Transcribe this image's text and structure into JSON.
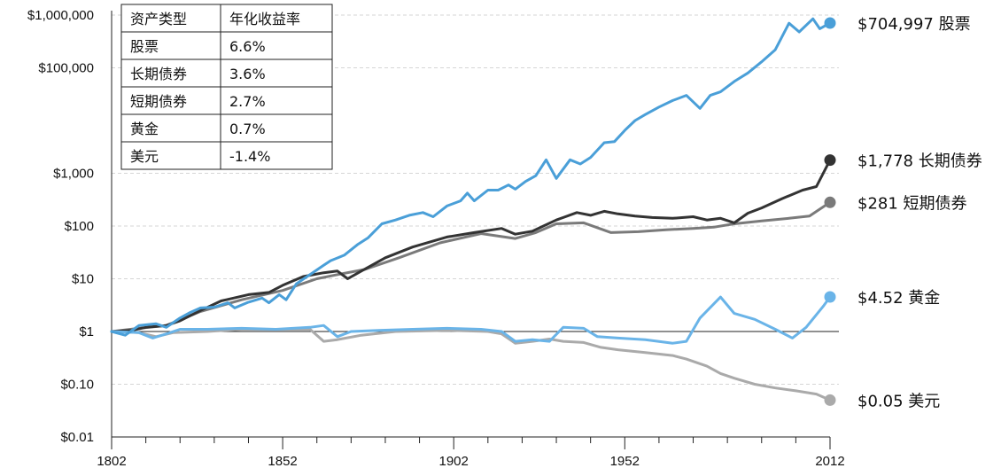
{
  "chart_data": {
    "type": "line",
    "scale": "log",
    "ylim": [
      0.01,
      1000000
    ],
    "xlim": [
      1802,
      2012
    ],
    "y_ticks": [
      {
        "value": 1000000,
        "label": "$1,000,000"
      },
      {
        "value": 100000,
        "label": "$100,000"
      },
      {
        "value": 1000,
        "label": "$1,000"
      },
      {
        "value": 100,
        "label": "$100"
      },
      {
        "value": 10,
        "label": "$10"
      },
      {
        "value": 1,
        "label": "$1"
      },
      {
        "value": 0.1,
        "label": "$0.10"
      },
      {
        "value": 0.01,
        "label": "$0.01"
      }
    ],
    "x_tick_labels": [
      "1802",
      "1852",
      "1902",
      "1952",
      "2012"
    ],
    "x_tick_values": [
      1802,
      1852,
      1902,
      1952,
      2012
    ],
    "grid": true,
    "table": {
      "headers": [
        "资产类型",
        "年化收益率"
      ],
      "rows": [
        [
          "股票",
          "6.6%"
        ],
        [
          "长期债券",
          "3.6%"
        ],
        [
          "短期债券",
          "2.7%"
        ],
        [
          "黄金",
          "0.7%"
        ],
        [
          "美元",
          "-1.4%"
        ]
      ]
    },
    "series": [
      {
        "end_label": "$704,997 股票",
        "color": "#4a9fd8",
        "end_value": 704997,
        "points": [
          [
            1802,
            1
          ],
          [
            1806,
            0.85
          ],
          [
            1810,
            1.3
          ],
          [
            1815,
            1.4
          ],
          [
            1818,
            1.2
          ],
          [
            1822,
            1.8
          ],
          [
            1825,
            2.3
          ],
          [
            1828,
            2.8
          ],
          [
            1832,
            2.9
          ],
          [
            1836,
            3.5
          ],
          [
            1838,
            2.8
          ],
          [
            1842,
            3.6
          ],
          [
            1846,
            4.3
          ],
          [
            1848,
            3.5
          ],
          [
            1851,
            5
          ],
          [
            1853,
            4
          ],
          [
            1856,
            8
          ],
          [
            1860,
            12
          ],
          [
            1864,
            18
          ],
          [
            1866,
            22
          ],
          [
            1870,
            28
          ],
          [
            1874,
            45
          ],
          [
            1877,
            60
          ],
          [
            1881,
            110
          ],
          [
            1885,
            130
          ],
          [
            1889,
            160
          ],
          [
            1893,
            180
          ],
          [
            1896,
            150
          ],
          [
            1900,
            240
          ],
          [
            1904,
            300
          ],
          [
            1906,
            420
          ],
          [
            1908,
            300
          ],
          [
            1912,
            480
          ],
          [
            1915,
            480
          ],
          [
            1918,
            600
          ],
          [
            1920,
            500
          ],
          [
            1923,
            700
          ],
          [
            1926,
            900
          ],
          [
            1929,
            1800
          ],
          [
            1932,
            800
          ],
          [
            1936,
            1800
          ],
          [
            1939,
            1500
          ],
          [
            1942,
            2000
          ],
          [
            1946,
            3800
          ],
          [
            1949,
            4000
          ],
          [
            1952,
            6500
          ],
          [
            1955,
            10000
          ],
          [
            1958,
            13000
          ],
          [
            1962,
            18000
          ],
          [
            1966,
            24000
          ],
          [
            1970,
            30000
          ],
          [
            1974,
            17000
          ],
          [
            1977,
            30000
          ],
          [
            1980,
            35000
          ],
          [
            1984,
            55000
          ],
          [
            1988,
            80000
          ],
          [
            1992,
            130000
          ],
          [
            1996,
            220000
          ],
          [
            2000,
            700000
          ],
          [
            2003,
            480000
          ],
          [
            2007,
            850000
          ],
          [
            2009,
            550000
          ],
          [
            2012,
            704997
          ]
        ]
      },
      {
        "end_label": "$1,778 长期债券",
        "color": "#333333",
        "end_value": 1778,
        "points": [
          [
            1802,
            1
          ],
          [
            1808,
            1.05
          ],
          [
            1812,
            1.2
          ],
          [
            1818,
            1.3
          ],
          [
            1822,
            1.6
          ],
          [
            1828,
            2.5
          ],
          [
            1834,
            3.8
          ],
          [
            1842,
            5
          ],
          [
            1848,
            5.5
          ],
          [
            1852,
            7.5
          ],
          [
            1858,
            11
          ],
          [
            1864,
            13
          ],
          [
            1868,
            14
          ],
          [
            1871,
            10
          ],
          [
            1875,
            14
          ],
          [
            1882,
            25
          ],
          [
            1890,
            40
          ],
          [
            1900,
            62
          ],
          [
            1908,
            75
          ],
          [
            1916,
            90
          ],
          [
            1920,
            70
          ],
          [
            1925,
            80
          ],
          [
            1932,
            130
          ],
          [
            1938,
            180
          ],
          [
            1942,
            160
          ],
          [
            1946,
            190
          ],
          [
            1950,
            170
          ],
          [
            1955,
            155
          ],
          [
            1960,
            145
          ],
          [
            1966,
            140
          ],
          [
            1972,
            150
          ],
          [
            1976,
            130
          ],
          [
            1980,
            140
          ],
          [
            1984,
            115
          ],
          [
            1988,
            175
          ],
          [
            1992,
            220
          ],
          [
            1998,
            330
          ],
          [
            2004,
            480
          ],
          [
            2008,
            560
          ],
          [
            2012,
            1778
          ]
        ]
      },
      {
        "end_label": "$281 短期债券",
        "color": "#7a7a7a",
        "end_value": 281,
        "points": [
          [
            1802,
            1
          ],
          [
            1810,
            1.15
          ],
          [
            1818,
            1.3
          ],
          [
            1828,
            2.4
          ],
          [
            1840,
            4
          ],
          [
            1852,
            6
          ],
          [
            1862,
            10
          ],
          [
            1868,
            12
          ],
          [
            1876,
            15
          ],
          [
            1886,
            25
          ],
          [
            1898,
            48
          ],
          [
            1910,
            72
          ],
          [
            1920,
            58
          ],
          [
            1926,
            75
          ],
          [
            1932,
            110
          ],
          [
            1940,
            115
          ],
          [
            1948,
            75
          ],
          [
            1956,
            78
          ],
          [
            1964,
            85
          ],
          [
            1972,
            90
          ],
          [
            1978,
            95
          ],
          [
            1984,
            110
          ],
          [
            1992,
            125
          ],
          [
            2000,
            140
          ],
          [
            2006,
            155
          ],
          [
            2012,
            281
          ]
        ]
      },
      {
        "end_label": "$4.52 黄金",
        "color": "#6ab4e8",
        "end_value": 4.52,
        "points": [
          [
            1802,
            1
          ],
          [
            1810,
            0.95
          ],
          [
            1814,
            0.75
          ],
          [
            1818,
            0.9
          ],
          [
            1822,
            1.1
          ],
          [
            1830,
            1.1
          ],
          [
            1840,
            1.15
          ],
          [
            1850,
            1.1
          ],
          [
            1860,
            1.2
          ],
          [
            1864,
            1.3
          ],
          [
            1868,
            0.8
          ],
          [
            1872,
            1.0
          ],
          [
            1880,
            1.05
          ],
          [
            1890,
            1.1
          ],
          [
            1900,
            1.15
          ],
          [
            1910,
            1.1
          ],
          [
            1916,
            1.0
          ],
          [
            1920,
            0.65
          ],
          [
            1925,
            0.7
          ],
          [
            1930,
            0.65
          ],
          [
            1934,
            1.2
          ],
          [
            1940,
            1.15
          ],
          [
            1944,
            0.8
          ],
          [
            1950,
            0.75
          ],
          [
            1958,
            0.7
          ],
          [
            1966,
            0.6
          ],
          [
            1970,
            0.65
          ],
          [
            1974,
            1.8
          ],
          [
            1980,
            4.5
          ],
          [
            1984,
            2.2
          ],
          [
            1990,
            1.7
          ],
          [
            1996,
            1.1
          ],
          [
            2001,
            0.75
          ],
          [
            2005,
            1.2
          ],
          [
            2010,
            3.0
          ],
          [
            2012,
            4.52
          ]
        ]
      },
      {
        "end_label": "$0.05 美元",
        "color": "#aaaaaa",
        "end_value": 0.05,
        "points": [
          [
            1802,
            1
          ],
          [
            1810,
            0.95
          ],
          [
            1815,
            0.8
          ],
          [
            1820,
            0.95
          ],
          [
            1830,
            1.0
          ],
          [
            1840,
            1.1
          ],
          [
            1850,
            1.1
          ],
          [
            1860,
            1.1
          ],
          [
            1864,
            0.65
          ],
          [
            1868,
            0.7
          ],
          [
            1875,
            0.85
          ],
          [
            1885,
            1.0
          ],
          [
            1900,
            1.05
          ],
          [
            1912,
            1.0
          ],
          [
            1916,
            0.9
          ],
          [
            1920,
            0.6
          ],
          [
            1925,
            0.65
          ],
          [
            1930,
            0.72
          ],
          [
            1934,
            0.65
          ],
          [
            1940,
            0.62
          ],
          [
            1945,
            0.5
          ],
          [
            1950,
            0.45
          ],
          [
            1958,
            0.4
          ],
          [
            1966,
            0.35
          ],
          [
            1970,
            0.3
          ],
          [
            1976,
            0.22
          ],
          [
            1980,
            0.16
          ],
          [
            1984,
            0.13
          ],
          [
            1990,
            0.1
          ],
          [
            1996,
            0.085
          ],
          [
            2002,
            0.075
          ],
          [
            2008,
            0.065
          ],
          [
            2012,
            0.05
          ]
        ]
      }
    ]
  }
}
